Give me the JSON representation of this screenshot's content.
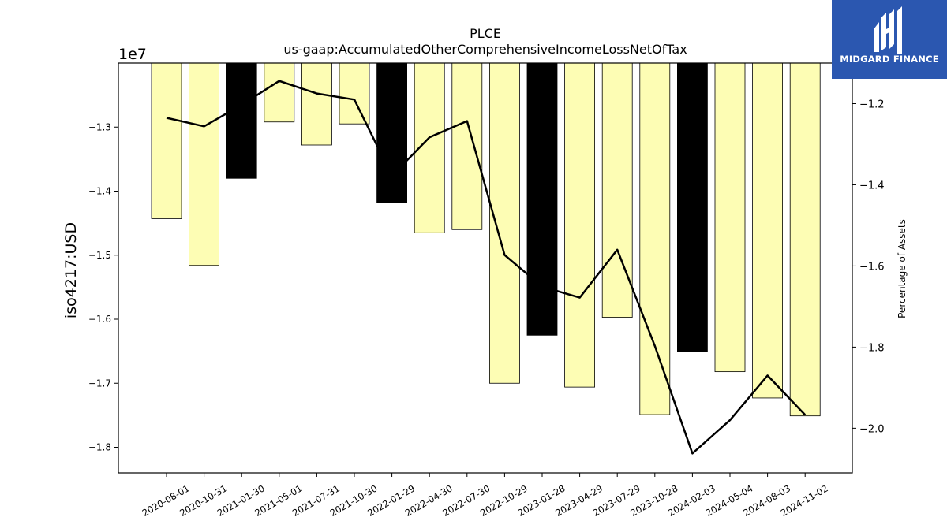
{
  "chart_data": {
    "type": "bar",
    "title": "PLCE",
    "subtitle": "us-gaap:AccumulatedOtherComprehensiveIncomeLossNetOfTax",
    "ylabel": "iso4217:USD",
    "y_offset_label": "1e7",
    "y2label": "Percentage of Assets",
    "categories": [
      "2020-08-01",
      "2020-10-31",
      "2021-01-30",
      "2021-05-01",
      "2021-07-31",
      "2021-10-30",
      "2022-01-29",
      "2022-04-30",
      "2022-07-30",
      "2022-10-29",
      "2023-01-28",
      "2023-04-29",
      "2023-07-29",
      "2023-10-28",
      "2024-02-03",
      "2024-05-04",
      "2024-08-03",
      "2024-11-02"
    ],
    "values": [
      -14430000,
      -15160000,
      -13800000,
      -12920000,
      -13280000,
      -12950000,
      -14180000,
      -14650000,
      -14600000,
      -17000000,
      -16250000,
      -17060000,
      -15970000,
      -17490000,
      -16500000,
      -16820000,
      -17230000,
      -17510000
    ],
    "bar_colors": [
      "#fdfdb4",
      "#fdfdb4",
      "#000000",
      "#fdfdb4",
      "#fdfdb4",
      "#fdfdb4",
      "#000000",
      "#fdfdb4",
      "#fdfdb4",
      "#fdfdb4",
      "#000000",
      "#fdfdb4",
      "#fdfdb4",
      "#fdfdb4",
      "#000000",
      "#fdfdb4",
      "#fdfdb4",
      "#fdfdb4"
    ],
    "line_series": {
      "values": [
        -1.235,
        -1.256,
        -1.203,
        -1.144,
        -1.175,
        -1.19,
        -1.378,
        -1.283,
        -1.243,
        -1.573,
        -1.651,
        -1.678,
        -1.56,
        -1.797,
        -2.062,
        -1.98,
        -1.87,
        -1.967
      ]
    },
    "ylim": [
      -18400000,
      -12000000
    ],
    "yticks": [
      -13000000,
      -14000000,
      -15000000,
      -16000000,
      -17000000,
      -18000000
    ],
    "ytick_labels": [
      "−1.3",
      "−1.4",
      "−1.5",
      "−1.6",
      "−1.7",
      "−1.8"
    ],
    "y2lim": [
      -2.11,
      -1.1
    ],
    "y2ticks": [
      -1.2,
      -1.4,
      -1.6,
      -1.8,
      -2.0
    ],
    "y2tick_labels": [
      "−1.2",
      "−1.4",
      "−1.6",
      "−1.8",
      "−2.0"
    ],
    "grid": false
  },
  "logo": {
    "text": "MIDGARD FINANCE"
  },
  "colors": {
    "bar": "#fdfdb4",
    "bar_highlight": "#000000",
    "line": "#000000",
    "logo_bg": "#2b57b0"
  }
}
